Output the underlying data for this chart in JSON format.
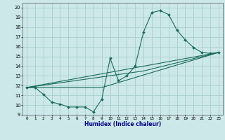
{
  "title": "",
  "xlabel": "Humidex (Indice chaleur)",
  "bg_color": "#cce8e8",
  "grid_color": "#aacece",
  "line_color": "#1a6b5a",
  "xlim": [
    -0.5,
    23.5
  ],
  "ylim": [
    9,
    20.5
  ],
  "yticks": [
    9,
    10,
    11,
    12,
    13,
    14,
    15,
    16,
    17,
    18,
    19,
    20
  ],
  "xticks": [
    0,
    1,
    2,
    3,
    4,
    5,
    6,
    7,
    8,
    9,
    10,
    11,
    12,
    13,
    14,
    15,
    16,
    17,
    18,
    19,
    20,
    21,
    22,
    23
  ],
  "series1_x": [
    0,
    1,
    2,
    3,
    4,
    5,
    6,
    7,
    8,
    9,
    10,
    11,
    12,
    13,
    14,
    15,
    16,
    17,
    18,
    19,
    20,
    21,
    22,
    23
  ],
  "series1_y": [
    11.8,
    11.8,
    11.1,
    10.3,
    10.1,
    9.8,
    9.8,
    9.8,
    9.3,
    10.6,
    14.8,
    12.5,
    13.0,
    14.0,
    17.5,
    19.5,
    19.7,
    19.3,
    17.7,
    16.7,
    15.9,
    15.4,
    15.3,
    15.4
  ],
  "series2_x": [
    0,
    23
  ],
  "series2_y": [
    11.8,
    15.4
  ],
  "series3_x": [
    0,
    9,
    23
  ],
  "series3_y": [
    11.8,
    11.8,
    15.4
  ],
  "series4_x": [
    0,
    14,
    23
  ],
  "series4_y": [
    11.8,
    13.5,
    15.4
  ]
}
